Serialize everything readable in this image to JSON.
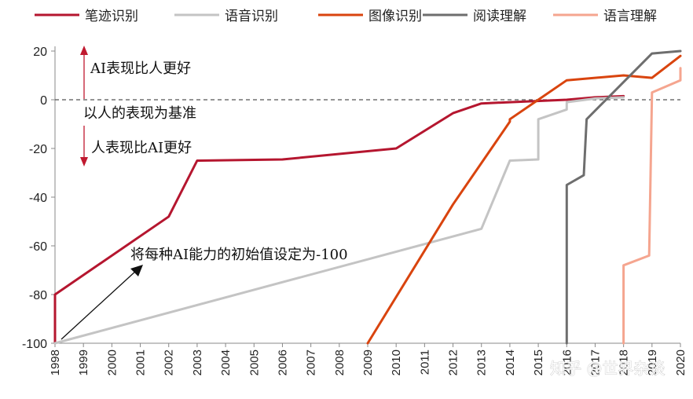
{
  "chart_data": {
    "type": "line",
    "title": "",
    "xlabel": "",
    "ylabel": "",
    "xlim": [
      1998,
      2020
    ],
    "ylim": [
      -100,
      20
    ],
    "yticks": [
      20,
      0,
      -20,
      -40,
      -60,
      -80,
      -100
    ],
    "xticks": [
      "1998",
      "1999",
      "2000",
      "2001",
      "2002",
      "2003",
      "2004",
      "2005",
      "2006",
      "2007",
      "2008",
      "2009",
      "2010",
      "2011",
      "2012",
      "2013",
      "2014",
      "2015",
      "2016",
      "2017",
      "2018",
      "2019",
      "2020"
    ],
    "baseline": 0,
    "legend_position": "top",
    "series": [
      {
        "name": "笔迹识别",
        "color": "#b5162f",
        "points": [
          [
            1998,
            -100
          ],
          [
            1998,
            -80
          ],
          [
            2002,
            -48
          ],
          [
            2003,
            -25
          ],
          [
            2006,
            -24.5
          ],
          [
            2010,
            -20
          ],
          [
            2012,
            -5.5
          ],
          [
            2013,
            -1.5
          ],
          [
            2014,
            -1
          ],
          [
            2016,
            0
          ],
          [
            2017,
            1
          ],
          [
            2018,
            1.5
          ]
        ]
      },
      {
        "name": "语音识别",
        "color": "#c4c4c4",
        "points": [
          [
            1998,
            -100
          ],
          [
            2013,
            -53
          ],
          [
            2014,
            -25
          ],
          [
            2015,
            -24.5
          ],
          [
            2015,
            -8
          ],
          [
            2016,
            -4
          ],
          [
            2016,
            -1
          ],
          [
            2017,
            0.5
          ],
          [
            2018,
            1
          ]
        ]
      },
      {
        "name": "图像识别",
        "color": "#d9440e",
        "points": [
          [
            2009,
            -100
          ],
          [
            2012,
            -43
          ],
          [
            2014,
            -9
          ],
          [
            2014,
            -8
          ],
          [
            2015,
            0
          ],
          [
            2016,
            8
          ],
          [
            2018,
            10
          ],
          [
            2019,
            9
          ],
          [
            2020,
            18
          ]
        ]
      },
      {
        "name": "阅读理解",
        "color": "#6e6e6e",
        "points": [
          [
            2016,
            -100
          ],
          [
            2016,
            -35
          ],
          [
            2016.6,
            -31
          ],
          [
            2016.7,
            -8
          ],
          [
            2019,
            19
          ],
          [
            2020,
            20
          ]
        ]
      },
      {
        "name": "语言理解",
        "color": "#f5a58f",
        "points": [
          [
            2018,
            -100
          ],
          [
            2018,
            -68
          ],
          [
            2018.9,
            -64
          ],
          [
            2019,
            3
          ],
          [
            2020,
            8
          ],
          [
            2020,
            13
          ]
        ]
      }
    ]
  },
  "annotations": {
    "better": "AI表现比人更好",
    "baseline": "以人的表现为基准",
    "worse": "人表现比AI更好",
    "initial": "将每种AI能力的初始值设定为-100"
  },
  "watermark": "知乎 @世界杂谈",
  "colors": {
    "arrow": "#c0192f",
    "axis": "#888888",
    "dash": "#555555"
  }
}
